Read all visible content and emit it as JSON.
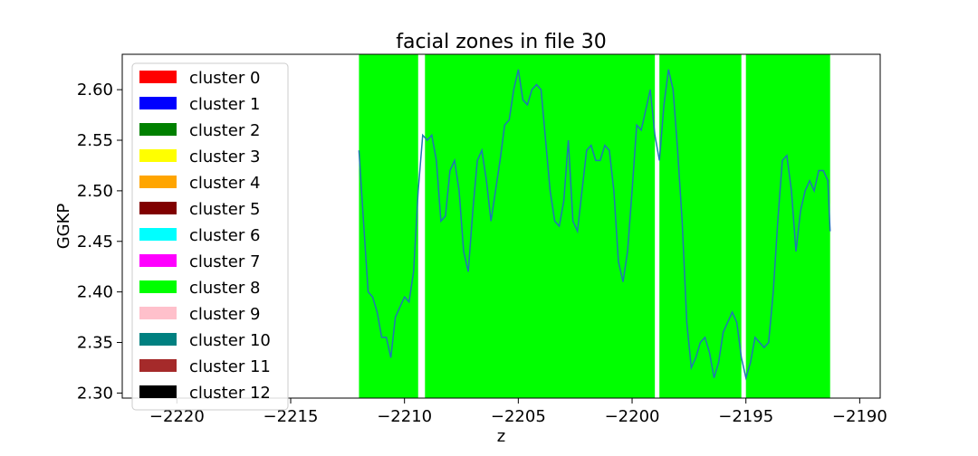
{
  "chart_data": {
    "type": "line",
    "title": "facial zones in file 30",
    "xlabel": "z",
    "ylabel": "GGKP",
    "xlim": [
      -2222.4,
      -2189.1
    ],
    "ylim": [
      2.295,
      2.635
    ],
    "xticks": [
      -2220,
      -2215,
      -2210,
      -2205,
      -2200,
      -2195,
      -2190
    ],
    "yticks": [
      2.3,
      2.35,
      2.4,
      2.45,
      2.5,
      2.55,
      2.6
    ],
    "xtick_labels": [
      "−2220",
      "−2215",
      "−2210",
      "−2205",
      "−2200",
      "−2195",
      "−2190"
    ],
    "ytick_labels": [
      "2.30",
      "2.35",
      "2.40",
      "2.45",
      "2.50",
      "2.55",
      "2.60"
    ],
    "grid": false,
    "legend_position": "upper-left",
    "line_color": "#1f77b4",
    "legend": [
      {
        "label": "cluster 0",
        "color": "#ff0000"
      },
      {
        "label": "cluster 1",
        "color": "#0000ff"
      },
      {
        "label": "cluster 2",
        "color": "#008000"
      },
      {
        "label": "cluster 3",
        "color": "#ffff00"
      },
      {
        "label": "cluster 4",
        "color": "#ffa500"
      },
      {
        "label": "cluster 5",
        "color": "#800000"
      },
      {
        "label": "cluster 6",
        "color": "#00ffff"
      },
      {
        "label": "cluster 7",
        "color": "#ff00ff"
      },
      {
        "label": "cluster 8",
        "color": "#00ff00"
      },
      {
        "label": "cluster 9",
        "color": "#ffc0cb"
      },
      {
        "label": "cluster 10",
        "color": "#008080"
      },
      {
        "label": "cluster 11",
        "color": "#a52a2a"
      },
      {
        "label": "cluster 12",
        "color": "#000000"
      }
    ],
    "zones": [
      {
        "cluster": 8,
        "start": -2212.0,
        "end": -2209.4,
        "color": "#00ff00"
      },
      {
        "cluster": 8,
        "start": -2209.1,
        "end": -2199.0,
        "color": "#00ff00"
      },
      {
        "cluster": 8,
        "start": -2198.8,
        "end": -2195.2,
        "color": "#00ff00"
      },
      {
        "cluster": 8,
        "start": -2195.0,
        "end": -2191.3,
        "color": "#00ff00"
      }
    ],
    "series": [
      {
        "x": [
          -2212.0,
          -2211.8,
          -2211.6,
          -2211.4,
          -2211.2,
          -2211.0,
          -2210.8,
          -2210.6,
          -2210.4,
          -2210.2,
          -2210.0,
          -2209.8,
          -2209.6,
          -2209.4,
          -2209.2,
          -2209.0,
          -2208.8,
          -2208.6,
          -2208.4,
          -2208.2,
          -2208.0,
          -2207.8,
          -2207.6,
          -2207.4,
          -2207.2,
          -2207.0,
          -2206.8,
          -2206.6,
          -2206.4,
          -2206.2,
          -2206.0,
          -2205.8,
          -2205.6,
          -2205.4,
          -2205.2,
          -2205.0,
          -2204.8,
          -2204.6,
          -2204.4,
          -2204.2,
          -2204.0,
          -2203.8,
          -2203.6,
          -2203.4,
          -2203.2,
          -2203.0,
          -2202.8,
          -2202.6,
          -2202.4,
          -2202.2,
          -2202.0,
          -2201.8,
          -2201.6,
          -2201.4,
          -2201.2,
          -2201.0,
          -2200.8,
          -2200.6,
          -2200.4,
          -2200.2,
          -2200.0,
          -2199.8,
          -2199.6,
          -2199.4,
          -2199.2,
          -2199.0,
          -2198.8,
          -2198.6,
          -2198.4,
          -2198.2,
          -2198.0,
          -2197.8,
          -2197.6,
          -2197.4,
          -2197.2,
          -2197.0,
          -2196.8,
          -2196.6,
          -2196.4,
          -2196.2,
          -2196.0,
          -2195.8,
          -2195.6,
          -2195.4,
          -2195.2,
          -2195.0,
          -2194.8,
          -2194.6,
          -2194.4,
          -2194.2,
          -2194.0,
          -2193.8,
          -2193.6,
          -2193.4,
          -2193.2,
          -2193.0,
          -2192.8,
          -2192.6,
          -2192.4,
          -2192.2,
          -2192.0,
          -2191.8,
          -2191.6,
          -2191.4,
          -2191.3
        ],
        "y": [
          2.54,
          2.47,
          2.4,
          2.395,
          2.38,
          2.355,
          2.355,
          2.335,
          2.375,
          2.385,
          2.395,
          2.39,
          2.42,
          2.5,
          2.555,
          2.55,
          2.555,
          2.53,
          2.47,
          2.475,
          2.52,
          2.53,
          2.5,
          2.44,
          2.42,
          2.48,
          2.53,
          2.54,
          2.51,
          2.47,
          2.5,
          2.53,
          2.565,
          2.57,
          2.6,
          2.62,
          2.59,
          2.585,
          2.6,
          2.605,
          2.6,
          2.55,
          2.5,
          2.47,
          2.465,
          2.49,
          2.55,
          2.47,
          2.46,
          2.5,
          2.54,
          2.545,
          2.53,
          2.53,
          2.545,
          2.54,
          2.5,
          2.43,
          2.41,
          2.44,
          2.5,
          2.565,
          2.56,
          2.58,
          2.6,
          2.555,
          2.53,
          2.585,
          2.62,
          2.6,
          2.54,
          2.47,
          2.37,
          2.325,
          2.335,
          2.35,
          2.355,
          2.34,
          2.315,
          2.33,
          2.36,
          2.37,
          2.38,
          2.37,
          2.335,
          2.315,
          2.33,
          2.355,
          2.35,
          2.345,
          2.35,
          2.4,
          2.47,
          2.53,
          2.535,
          2.5,
          2.44,
          2.48,
          2.5,
          2.51,
          2.5,
          2.52,
          2.52,
          2.51,
          2.46
        ]
      }
    ]
  }
}
